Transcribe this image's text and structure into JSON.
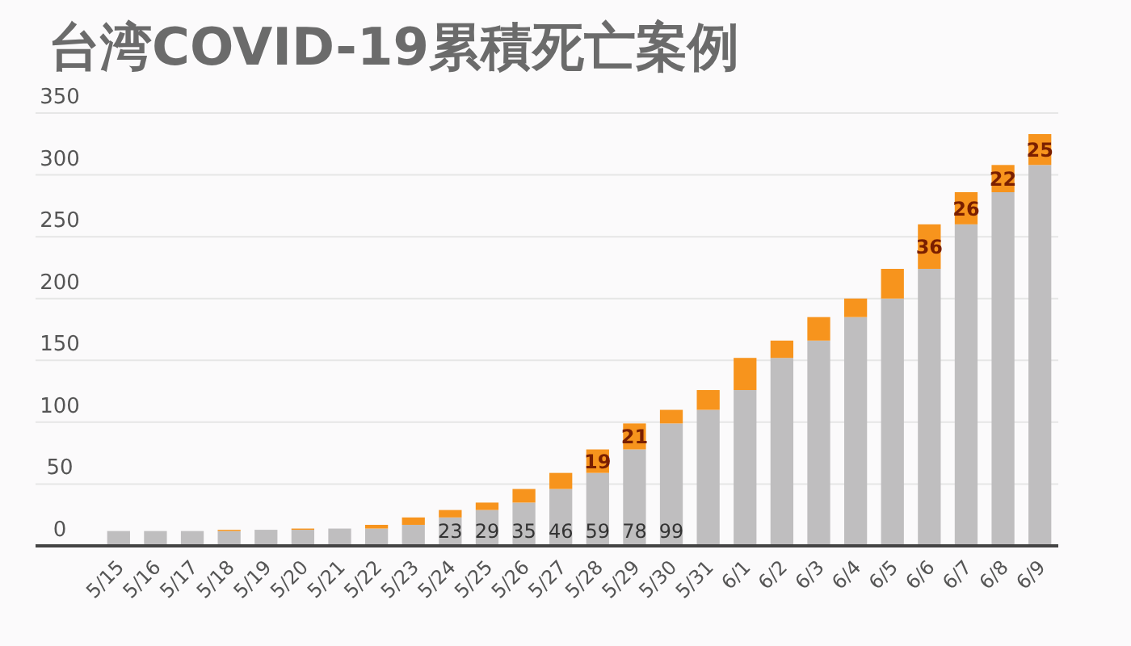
{
  "chart_data": {
    "type": "bar",
    "title": "台湾COVID-19累積死亡案例",
    "stacked": true,
    "grid": "y",
    "categories": [
      "5/15",
      "5/16",
      "5/17",
      "5/18",
      "5/19",
      "5/20",
      "5/21",
      "5/22",
      "5/23",
      "5/24",
      "5/25",
      "5/26",
      "5/27",
      "5/28",
      "5/29",
      "5/30",
      "5/31",
      "6/1",
      "6/2",
      "6/3",
      "6/4",
      "6/5",
      "6/6",
      "6/7",
      "6/8",
      "6/9"
    ],
    "series": [
      {
        "color": "#bfbebf",
        "values": [
          12,
          12,
          12,
          12,
          13,
          13,
          14,
          14,
          17,
          23,
          29,
          35,
          46,
          59,
          78,
          99,
          110,
          126,
          152,
          166,
          185,
          200,
          224,
          260,
          286,
          308
        ],
        "value_labels": [
          null,
          null,
          null,
          null,
          null,
          null,
          null,
          null,
          null,
          "23",
          "29",
          "35",
          "46",
          "59",
          "78",
          "99",
          null,
          null,
          null,
          null,
          null,
          null,
          null,
          null,
          null,
          null
        ]
      },
      {
        "color": "#f7941d",
        "values": [
          0,
          0,
          0,
          1,
          0,
          1,
          0,
          3,
          6,
          6,
          6,
          11,
          13,
          19,
          21,
          11,
          16,
          26,
          14,
          19,
          15,
          24,
          36,
          26,
          22,
          25
        ],
        "value_labels": [
          null,
          null,
          null,
          null,
          null,
          null,
          null,
          null,
          null,
          null,
          null,
          null,
          null,
          "19",
          "21",
          null,
          null,
          null,
          null,
          null,
          null,
          null,
          "36",
          "26",
          "22",
          "25"
        ]
      }
    ],
    "ylim": [
      0,
      350
    ],
    "yticks": [
      0,
      50,
      100,
      150,
      200,
      250,
      300,
      350
    ]
  }
}
